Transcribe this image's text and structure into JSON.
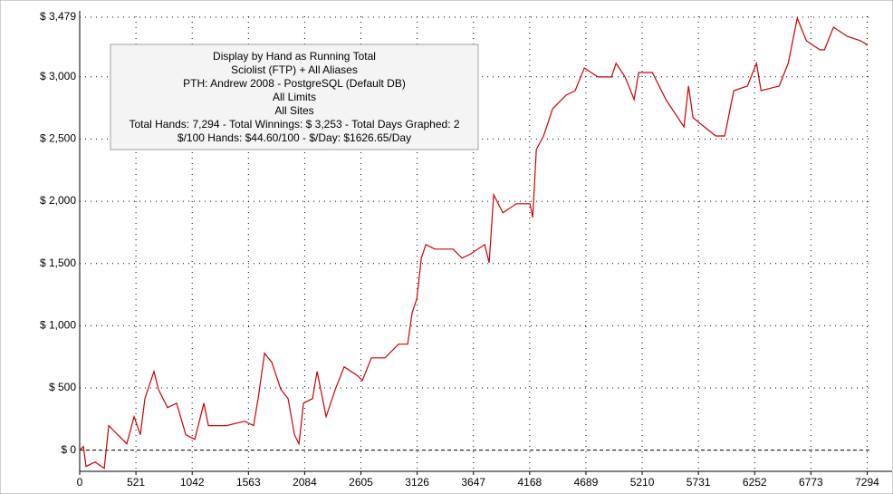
{
  "chart_data": {
    "type": "line",
    "annotations": [
      "Display by Hand as Running Total",
      "Sciolist (FTP) + All Aliases",
      "PTH: Andrew 2008 - PostgreSQL (Default DB)",
      "All Limits",
      "All Sites",
      "Total Hands: 7,294 - Total Winnings: $ 3,253 - Total Days Graphed: 2",
      "$/100 Hands: $44.60/100 - $/Day: $1626.65/Day"
    ],
    "xlim": [
      0,
      7525
    ],
    "ylim": [
      -170,
      3530
    ],
    "xticks": [
      0,
      521,
      1042,
      1563,
      2084,
      2605,
      3126,
      3647,
      4168,
      4689,
      5210,
      5731,
      6252,
      6773,
      7294
    ],
    "yticks": [
      {
        "value": 0,
        "label": "$ 0"
      },
      {
        "value": 500,
        "label": "$ 500"
      },
      {
        "value": 1000,
        "label": "$ 1,000"
      },
      {
        "value": 1500,
        "label": "$ 1,500"
      },
      {
        "value": 2000,
        "label": "$ 2,000"
      },
      {
        "value": 2500,
        "label": "$ 2,500"
      },
      {
        "value": 3000,
        "label": "$ 3,000"
      },
      {
        "value": 3479,
        "label": "$ 3,479"
      }
    ],
    "grid": true,
    "series": [
      {
        "color": "#cc0000",
        "x": [
          0,
          34,
          59,
          143,
          227,
          269,
          352,
          436,
          503,
          562,
          604,
          646,
          688,
          730,
          814,
          898,
          982,
          1066,
          1150,
          1192,
          1360,
          1528,
          1611,
          1653,
          1712,
          1779,
          1863,
          1930,
          1989,
          2031,
          2073,
          2157,
          2199,
          2283,
          2367,
          2450,
          2576,
          2618,
          2702,
          2828,
          2954,
          3038,
          3080,
          3122,
          3164,
          3206,
          3290,
          3458,
          3541,
          3625,
          3751,
          3793,
          3835,
          3919,
          4045,
          4171,
          4196,
          4230,
          4297,
          4381,
          4506,
          4590,
          4674,
          4800,
          4926,
          4968,
          5052,
          5136,
          5178,
          5304,
          5430,
          5597,
          5639,
          5681,
          5891,
          5975,
          6059,
          6185,
          6269,
          6311,
          6479,
          6563,
          6647,
          6731,
          6856,
          6898,
          6982,
          7108,
          7234,
          7276,
          7294
        ],
        "values": [
          0,
          29,
          -131,
          -95,
          -146,
          197,
          124,
          51,
          269,
          124,
          415,
          524,
          633,
          488,
          342,
          378,
          124,
          87,
          378,
          197,
          197,
          233,
          197,
          415,
          779,
          706,
          488,
          415,
          124,
          51,
          378,
          415,
          633,
          269,
          488,
          670,
          597,
          560,
          742,
          742,
          852,
          852,
          1106,
          1215,
          1543,
          1652,
          1616,
          1616,
          1543,
          1579,
          1652,
          1507,
          2052,
          1907,
          1980,
          1980,
          1870,
          2416,
          2525,
          2744,
          2853,
          2889,
          3071,
          2999,
          2999,
          3108,
          2999,
          2817,
          3035,
          3035,
          2817,
          2598,
          2926,
          2671,
          2525,
          2525,
          2889,
          2926,
          3108,
          2889,
          2926,
          3108,
          3472,
          3290,
          3217,
          3217,
          3399,
          3326,
          3290,
          3268,
          3253
        ]
      }
    ]
  }
}
